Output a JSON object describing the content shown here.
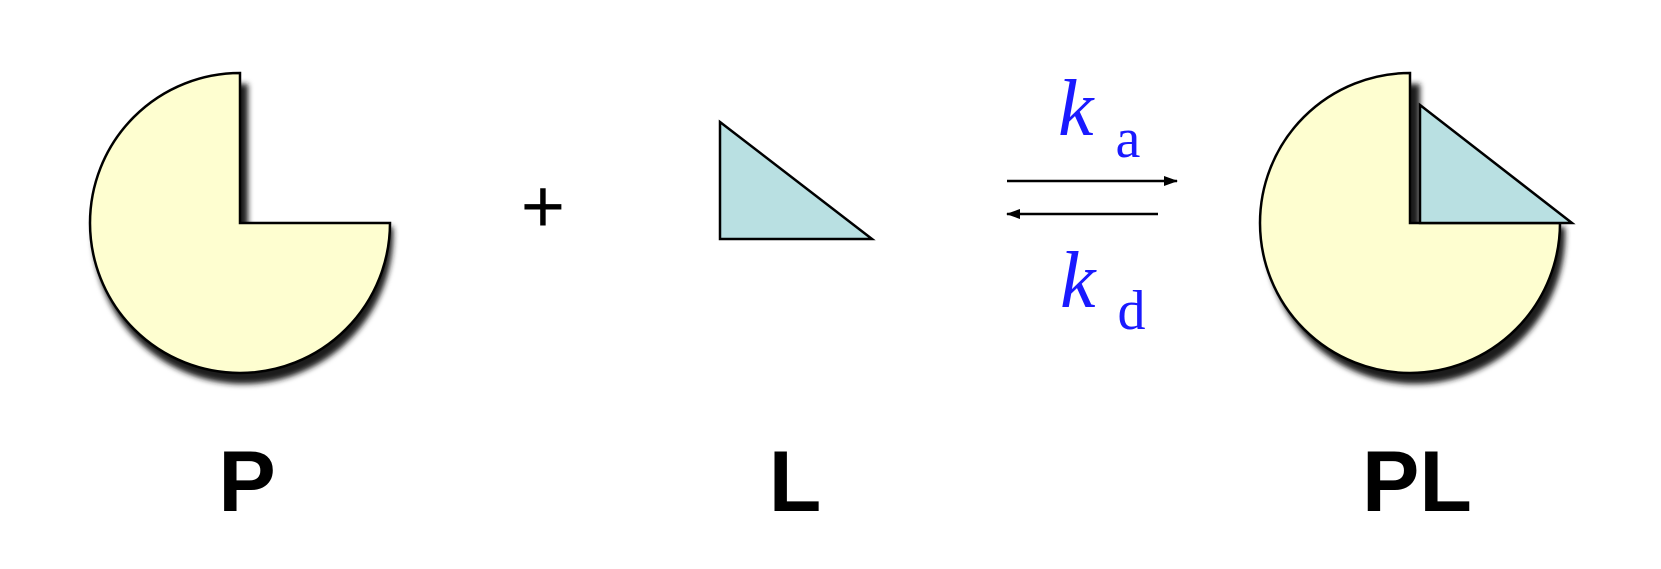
{
  "species": {
    "protein": {
      "label": "P"
    },
    "ligand": {
      "label": "L"
    },
    "complex": {
      "label": "PL"
    }
  },
  "operator": "+",
  "rates": {
    "association": {
      "symbol": "k",
      "subscript": "a"
    },
    "dissociation": {
      "symbol": "k",
      "subscript": "d"
    }
  },
  "colors": {
    "protein_fill": "#fefed0",
    "ligand_fill": "#b9e0e2",
    "rate_text": "#1a1aff",
    "outline": "#000000",
    "shadow": "#1a1a1a"
  }
}
